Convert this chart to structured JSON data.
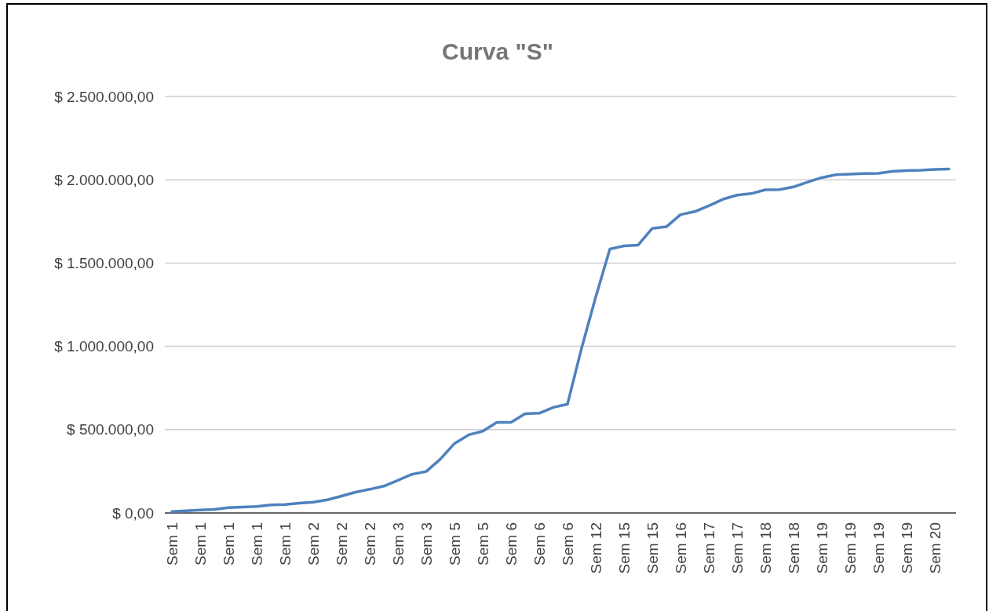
{
  "chart_data": {
    "type": "line",
    "title": "Curva \"S\"",
    "categories": [
      "Sem 1",
      null,
      "Sem 1",
      null,
      "Sem 1",
      null,
      "Sem 1",
      null,
      "Sem 1",
      null,
      "Sem 2",
      null,
      "Sem 2",
      null,
      "Sem 2",
      null,
      "Sem 3",
      null,
      "Sem 3",
      null,
      "Sem 5",
      null,
      "Sem 5",
      null,
      "Sem 6",
      null,
      "Sem 6",
      null,
      "Sem 6",
      null,
      "Sem 12",
      null,
      "Sem 15",
      null,
      "Sem 15",
      null,
      "Sem 16",
      null,
      "Sem 17",
      null,
      "Sem 17",
      null,
      "Sem 18",
      null,
      "Sem 18",
      null,
      "Sem 19",
      null,
      "Sem 19",
      null,
      "Sem 19",
      null,
      "Sem 19",
      null,
      "Sem 20",
      null
    ],
    "series": [
      {
        "color": "#4f81bd",
        "values": [
          8000,
          13000,
          18000,
          21000,
          32000,
          35000,
          39000,
          48000,
          51000,
          59000,
          65000,
          79000,
          101000,
          125000,
          142000,
          161000,
          196000,
          232000,
          249000,
          323000,
          417000,
          469000,
          491000,
          544000,
          544000,
          596000,
          599000,
          634000,
          653000,
          990000,
          1297000,
          1584000,
          1603000,
          1608000,
          1708000,
          1718000,
          1791000,
          1809000,
          1844000,
          1883000,
          1908000,
          1917000,
          1940000,
          1941000,
          1957000,
          1986000,
          2013000,
          2030000,
          2034000,
          2037000,
          2039000,
          2050000,
          2055000,
          2057000,
          2062000,
          2065000
        ]
      }
    ],
    "ylim": [
      0,
      2500000
    ],
    "yticks": [
      {
        "value": 0,
        "label": "$ 0,00"
      },
      {
        "value": 500000,
        "label": "$ 500.000,00"
      },
      {
        "value": 1000000,
        "label": "$ 1.000.000,00"
      },
      {
        "value": 1500000,
        "label": "$ 1.500.000,00"
      },
      {
        "value": 2000000,
        "label": "$ 2.000.000,00"
      },
      {
        "value": 2500000,
        "label": "$ 2.500.000,00"
      }
    ],
    "grid": "y",
    "marker": "none",
    "line_style": "solid"
  }
}
